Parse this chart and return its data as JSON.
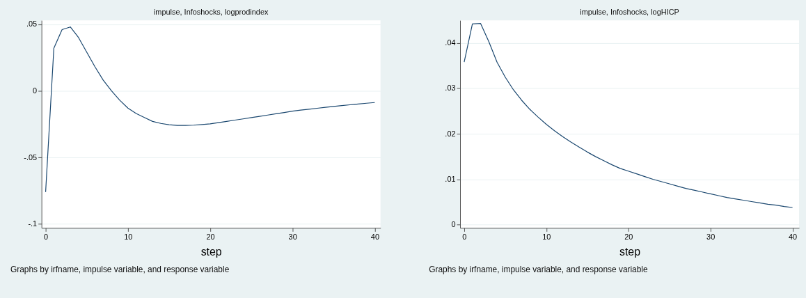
{
  "chart_data": [
    {
      "type": "line",
      "title": "impulse, Infoshocks, logprodindex",
      "xlabel": "step",
      "annotations": [
        "Graphs by irfname, impulse variable, and response variable"
      ],
      "x": [
        0,
        1,
        2,
        3,
        4,
        5,
        6,
        7,
        8,
        9,
        10,
        11,
        12,
        13,
        14,
        15,
        16,
        17,
        18,
        19,
        20,
        21,
        22,
        23,
        24,
        25,
        26,
        27,
        28,
        29,
        30,
        31,
        32,
        33,
        34,
        35,
        36,
        37,
        38,
        39,
        40
      ],
      "series": [
        {
          "color": "#1a476f",
          "values": [
            -0.076,
            0.032,
            0.046,
            0.048,
            0.04,
            0.029,
            0.018,
            0.008,
            0.0,
            -0.007,
            -0.013,
            -0.017,
            -0.02,
            -0.023,
            -0.0245,
            -0.0255,
            -0.026,
            -0.026,
            -0.0258,
            -0.0253,
            -0.0248,
            -0.0239,
            -0.023,
            -0.022,
            -0.0211,
            -0.0201,
            -0.0192,
            -0.0182,
            -0.0172,
            -0.0163,
            -0.0153,
            -0.0145,
            -0.0138,
            -0.0131,
            -0.0124,
            -0.0117,
            -0.0111,
            -0.0105,
            -0.0099,
            -0.0093,
            -0.0088
          ]
        }
      ],
      "xlim": [
        -0.5,
        40.7
      ],
      "xticks": [
        0,
        10,
        20,
        30,
        40
      ],
      "ylim": [
        -0.103,
        0.053
      ],
      "yticks": [
        {
          "value": 0.05,
          "label": ".05"
        },
        0,
        {
          "value": -0.05,
          "label": "-.05"
        },
        {
          "value": -0.1,
          "label": "-.1"
        }
      ],
      "grid": "y",
      "marker": "none",
      "line_style": "solid"
    },
    {
      "type": "line",
      "title": "impulse, Infoshocks, logHICP",
      "xlabel": "step",
      "annotations": [
        "Graphs by irfname, impulse variable, and response variable"
      ],
      "x": [
        0,
        1,
        2,
        3,
        4,
        5,
        6,
        7,
        8,
        9,
        10,
        11,
        12,
        13,
        14,
        15,
        16,
        17,
        18,
        19,
        20,
        21,
        22,
        23,
        24,
        25,
        26,
        27,
        28,
        29,
        30,
        31,
        32,
        33,
        34,
        35,
        36,
        37,
        38,
        39,
        40
      ],
      "series": [
        {
          "color": "#1a476f",
          "values": [
            0.0358,
            0.0442,
            0.0443,
            0.0403,
            0.0358,
            0.0325,
            0.0297,
            0.0274,
            0.0254,
            0.0237,
            0.0221,
            0.0207,
            0.0194,
            0.0182,
            0.0171,
            0.016,
            0.015,
            0.0141,
            0.0132,
            0.0124,
            0.0118,
            0.0112,
            0.0106,
            0.01,
            0.0095,
            0.009,
            0.0085,
            0.008,
            0.0076,
            0.0072,
            0.0068,
            0.0064,
            0.006,
            0.0057,
            0.0054,
            0.0051,
            0.0048,
            0.0045,
            0.0043,
            0.004,
            0.0038
          ]
        }
      ],
      "xlim": [
        -0.5,
        40.8
      ],
      "xticks": [
        0,
        10,
        20,
        30,
        40
      ],
      "ylim": [
        -0.0007,
        0.045
      ],
      "yticks": [
        0,
        {
          "value": 0.01,
          "label": ".01"
        },
        {
          "value": 0.02,
          "label": ".02"
        },
        {
          "value": 0.03,
          "label": ".03"
        },
        {
          "value": 0.04,
          "label": ".04"
        }
      ],
      "grid": "y",
      "marker": "none",
      "line_style": "solid"
    }
  ]
}
